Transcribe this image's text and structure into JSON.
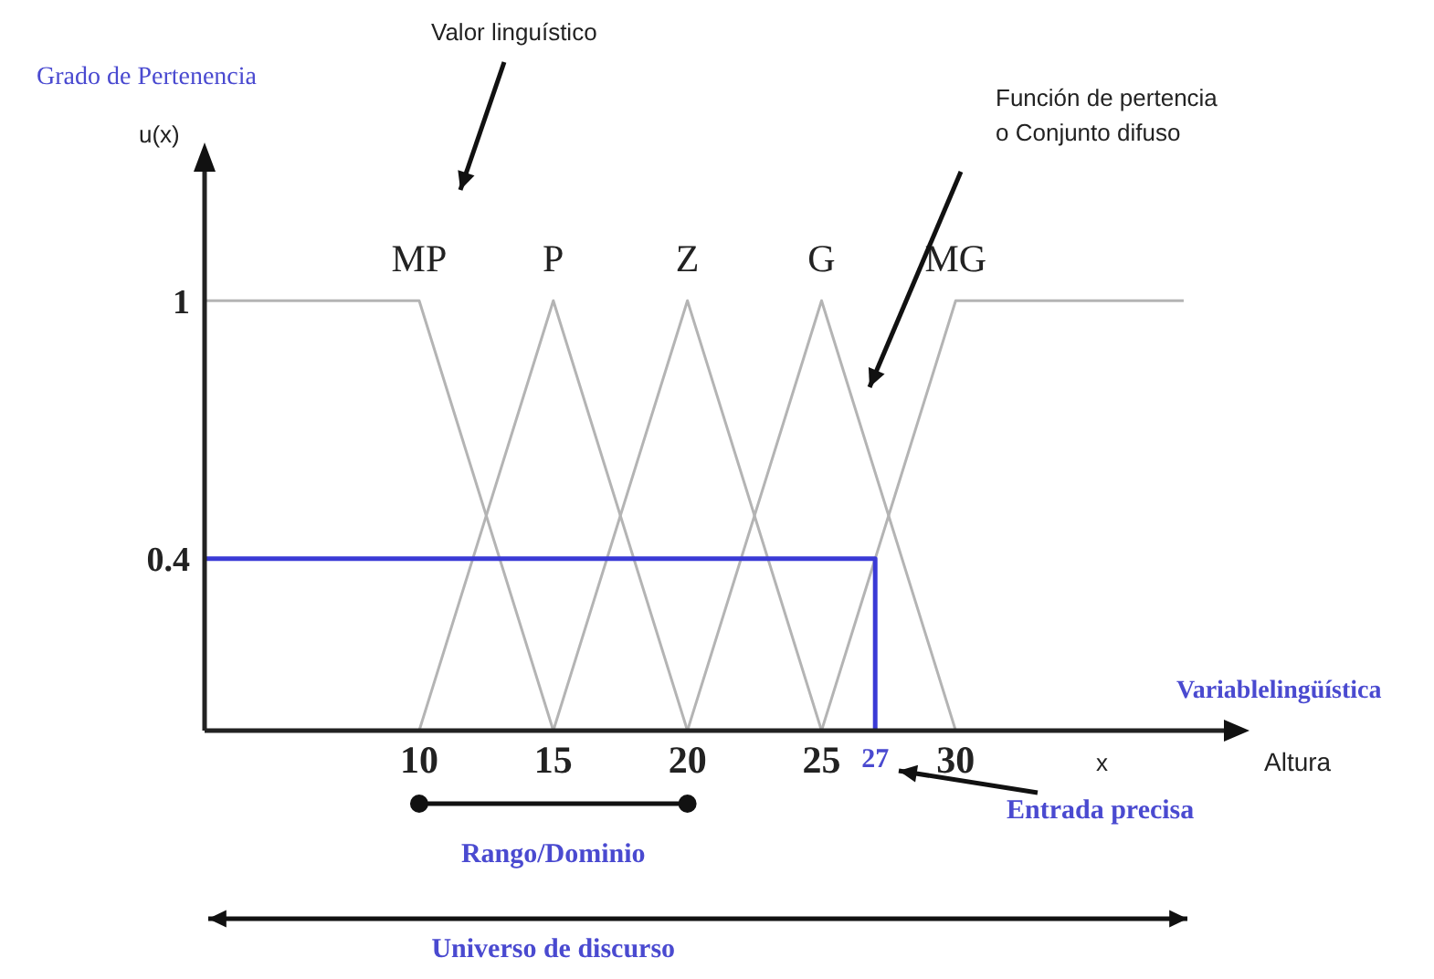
{
  "chart_data": {
    "type": "line",
    "ylabel": "Grado de Pertenencia",
    "xlim": [
      2,
      40
    ],
    "ylim": [
      0,
      1.3
    ],
    "xticks": [
      10,
      15,
      20,
      25,
      30
    ],
    "yticks": [
      0.4,
      1
    ],
    "grid": false,
    "legend": false,
    "marker": "none",
    "line_style": "solid",
    "series": [
      {
        "name": "MP",
        "color": "#b4b4b4",
        "x": [
          2,
          10,
          15
        ],
        "values": [
          1,
          1,
          0
        ]
      },
      {
        "name": "P",
        "color": "#b4b4b4",
        "x": [
          10,
          15,
          20
        ],
        "values": [
          0,
          1,
          0
        ]
      },
      {
        "name": "Z",
        "color": "#b4b4b4",
        "x": [
          15,
          20,
          25
        ],
        "values": [
          0,
          1,
          0
        ]
      },
      {
        "name": "G",
        "color": "#b4b4b4",
        "x": [
          20,
          25,
          30
        ],
        "values": [
          0,
          1,
          0
        ]
      },
      {
        "name": "MG",
        "color": "#b4b4b4",
        "x": [
          25,
          30,
          38.5
        ],
        "values": [
          0,
          1,
          1
        ]
      },
      {
        "color": "#3a3ad6",
        "x": [
          2,
          27,
          27
        ],
        "values": [
          0.4,
          0.4,
          0
        ]
      }
    ],
    "annotations": [
      "Valor linguístico",
      "Función de pertencia\no Conjunto difuso",
      "u(x)",
      "Variablelingüística",
      "x",
      "Altura",
      {
        "text": "27",
        "x": 27,
        "y": 0
      },
      "Entrada precisa",
      "Rango/Dominio",
      "Universo de discurso"
    ]
  }
}
